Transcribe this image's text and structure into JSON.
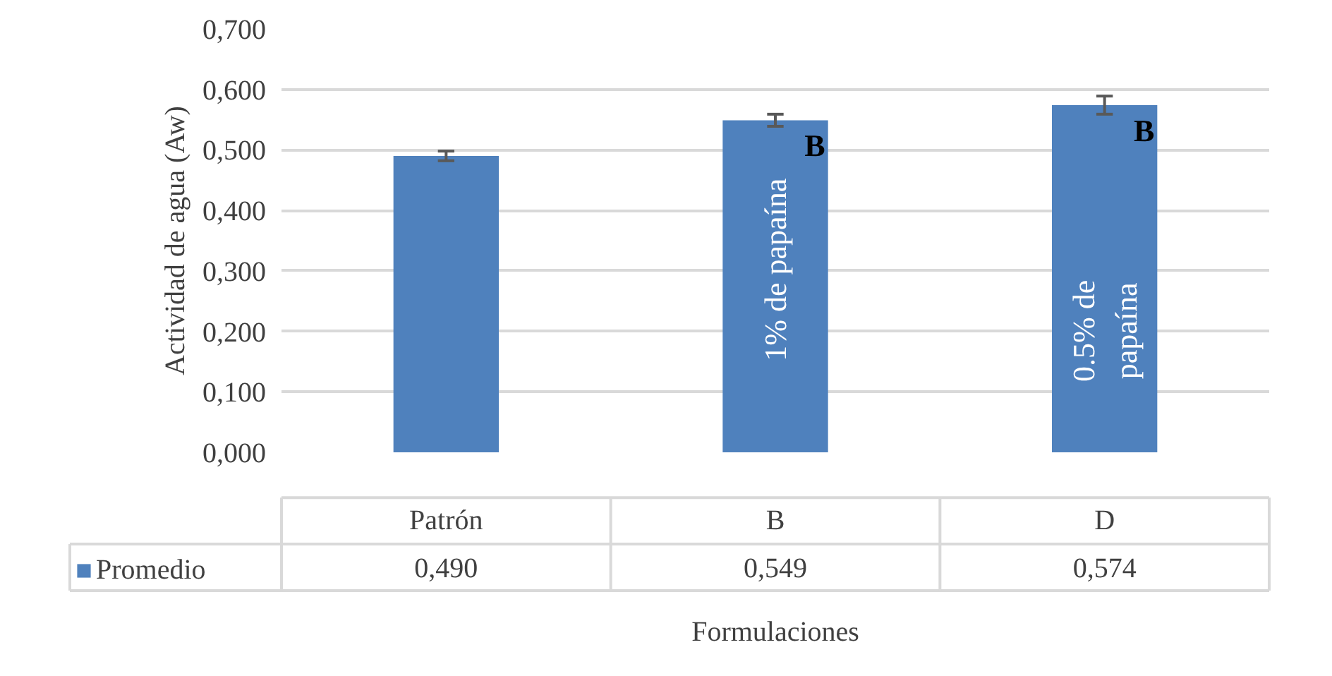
{
  "chart_data": {
    "type": "bar",
    "ylabel": "Actividad de agua (Aw)",
    "xlabel": "Formulaciones",
    "categories": [
      "Patrón",
      "B",
      "D"
    ],
    "series": [
      {
        "name": "Promedio",
        "color": "#4f81bd",
        "values": [
          0.49,
          0.549,
          0.574
        ],
        "errors": [
          0.008,
          0.01,
          0.015
        ],
        "value_labels": [
          "0,490",
          "0,549",
          "0,574"
        ]
      }
    ],
    "ylim": [
      0,
      0.7
    ],
    "yticks": [
      {
        "value": 0,
        "label": "0,000"
      },
      {
        "value": 0.1,
        "label": "0,100"
      },
      {
        "value": 0.2,
        "label": "0,200"
      },
      {
        "value": 0.3,
        "label": "0,300"
      },
      {
        "value": 0.4,
        "label": "0,400"
      },
      {
        "value": 0.5,
        "label": "0,500"
      },
      {
        "value": 0.6,
        "label": "0,600"
      },
      {
        "value": 0.7,
        "label": "0,700"
      }
    ],
    "grid": "y",
    "legend": "bottom",
    "annotations": [
      "B",
      "B",
      "1% de papaína",
      "0.5% de papaína"
    ]
  }
}
